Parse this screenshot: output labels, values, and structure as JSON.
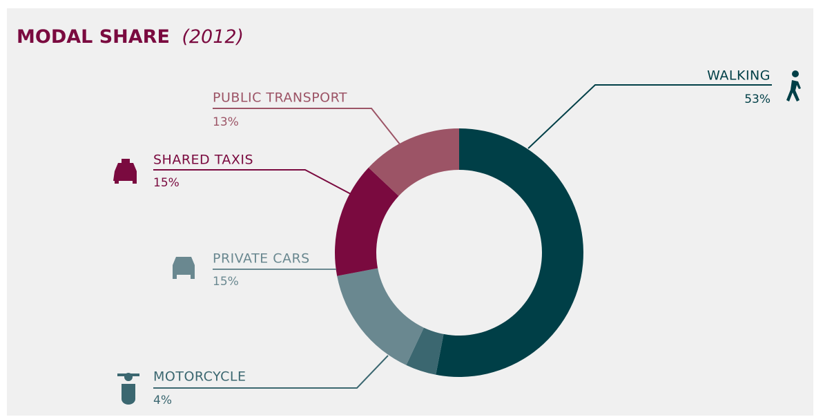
{
  "chart_data": {
    "type": "donut",
    "title": "MODAL SHARE",
    "subtitle": "(2012)",
    "categories": [
      "WALKING",
      "MOTORCYCLE",
      "PRIVATE CARS",
      "SHARED TAXIS",
      "PUBLIC TRANSPORT"
    ],
    "values": [
      53,
      4,
      15,
      15,
      13
    ],
    "value_labels": [
      "53%",
      "4%",
      "15%",
      "15%",
      "13%"
    ],
    "colors": [
      "#003f47",
      "#3b6770",
      "#6a8890",
      "#7a0a3f",
      "#9c5466"
    ]
  }
}
